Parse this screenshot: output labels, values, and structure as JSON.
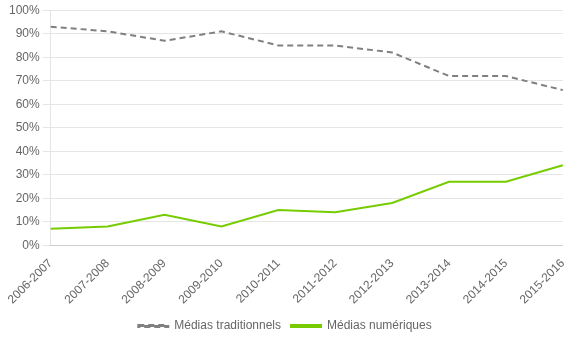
{
  "chart_data": {
    "type": "line",
    "categories": [
      "2006-2007",
      "2007-2008",
      "2008-2009",
      "2009-2010",
      "2010-2011",
      "2011-2012",
      "2012-2013",
      "2013-2014",
      "2014-2015",
      "2015-2016"
    ],
    "series": [
      {
        "name": "Médias traditionnels",
        "color": "#808080",
        "line_style": "dashed",
        "marker": "none",
        "values": [
          0.93,
          0.91,
          0.87,
          0.91,
          0.85,
          0.85,
          0.82,
          0.72,
          0.72,
          0.66
        ]
      },
      {
        "name": "Médias numériques",
        "color": "#76cc00",
        "line_style": "solid",
        "marker": "none",
        "values": [
          0.07,
          0.08,
          0.13,
          0.08,
          0.15,
          0.14,
          0.18,
          0.27,
          0.27,
          0.34
        ]
      }
    ],
    "ylim": [
      0,
      1.0
    ],
    "yticks": [
      {
        "value": 0,
        "label": "0%"
      },
      {
        "value": 0.1,
        "label": "10%"
      },
      {
        "value": 0.2,
        "label": "20%"
      },
      {
        "value": 0.3,
        "label": "30%"
      },
      {
        "value": 0.4,
        "label": "40%"
      },
      {
        "value": 0.5,
        "label": "50%"
      },
      {
        "value": 0.6,
        "label": "60%"
      },
      {
        "value": 0.7,
        "label": "70%"
      },
      {
        "value": 0.8,
        "label": "80%"
      },
      {
        "value": 0.9,
        "label": "90%"
      },
      {
        "value": 1.0,
        "label": "100%"
      }
    ],
    "grid": true,
    "legend": "bottom"
  }
}
